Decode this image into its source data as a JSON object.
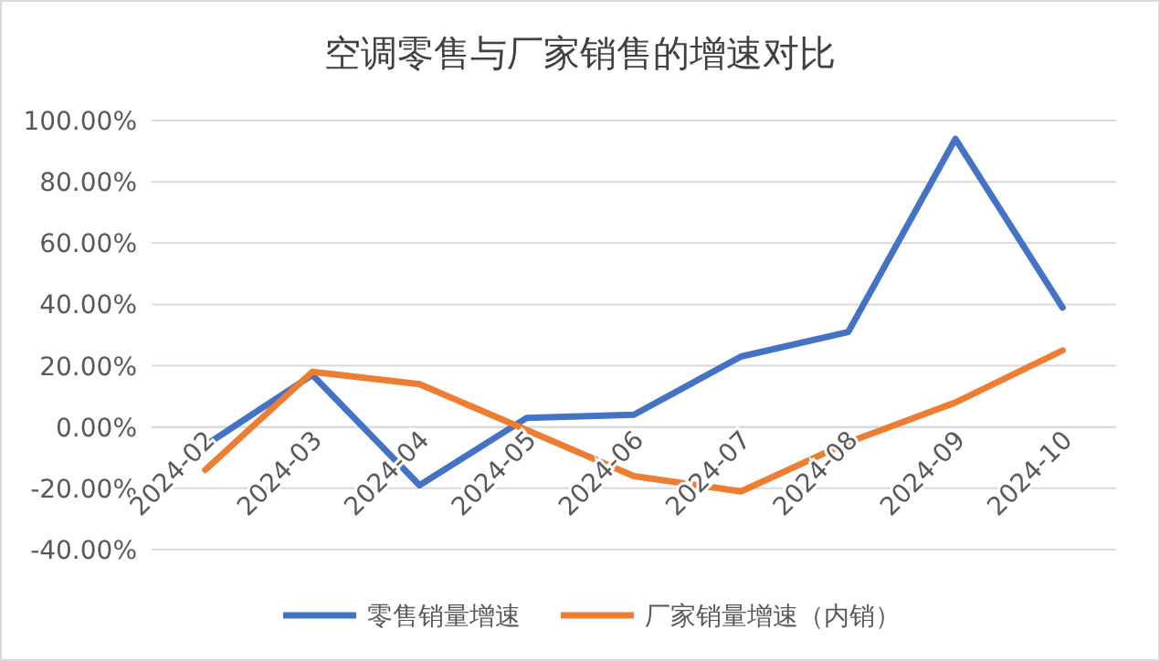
{
  "chart_data": {
    "type": "line",
    "title": "空调零售与厂家销售的增速对比",
    "categories": [
      "2024-02",
      "2024-03",
      "2024-04",
      "2024-05",
      "2024-06",
      "2024-07",
      "2024-08",
      "2024-09",
      "2024-10"
    ],
    "series": [
      {
        "name": "零售销量增速",
        "color": "#4472c4",
        "values": [
          -6,
          17,
          -19,
          3,
          4,
          23,
          31,
          94,
          39
        ]
      },
      {
        "name": "厂家销量增速（内销）",
        "color": "#ed7d31",
        "values": [
          -14,
          18,
          14,
          -1,
          -16,
          -21,
          -5,
          8,
          25
        ]
      }
    ],
    "ylim": [
      -40,
      100
    ],
    "yticks": [
      {
        "value": -40,
        "label": "-40.00%"
      },
      {
        "value": -20,
        "label": "-20.00%"
      },
      {
        "value": 0,
        "label": "0.00%"
      },
      {
        "value": 20,
        "label": "20.00%"
      },
      {
        "value": 40,
        "label": "40.00%"
      },
      {
        "value": 60,
        "label": "60.00%"
      },
      {
        "value": 80,
        "label": "80.00%"
      },
      {
        "value": 100,
        "label": "100.00%"
      }
    ],
    "grid": "y",
    "legend": "bottom",
    "marker": "none",
    "line_style": "solid"
  }
}
